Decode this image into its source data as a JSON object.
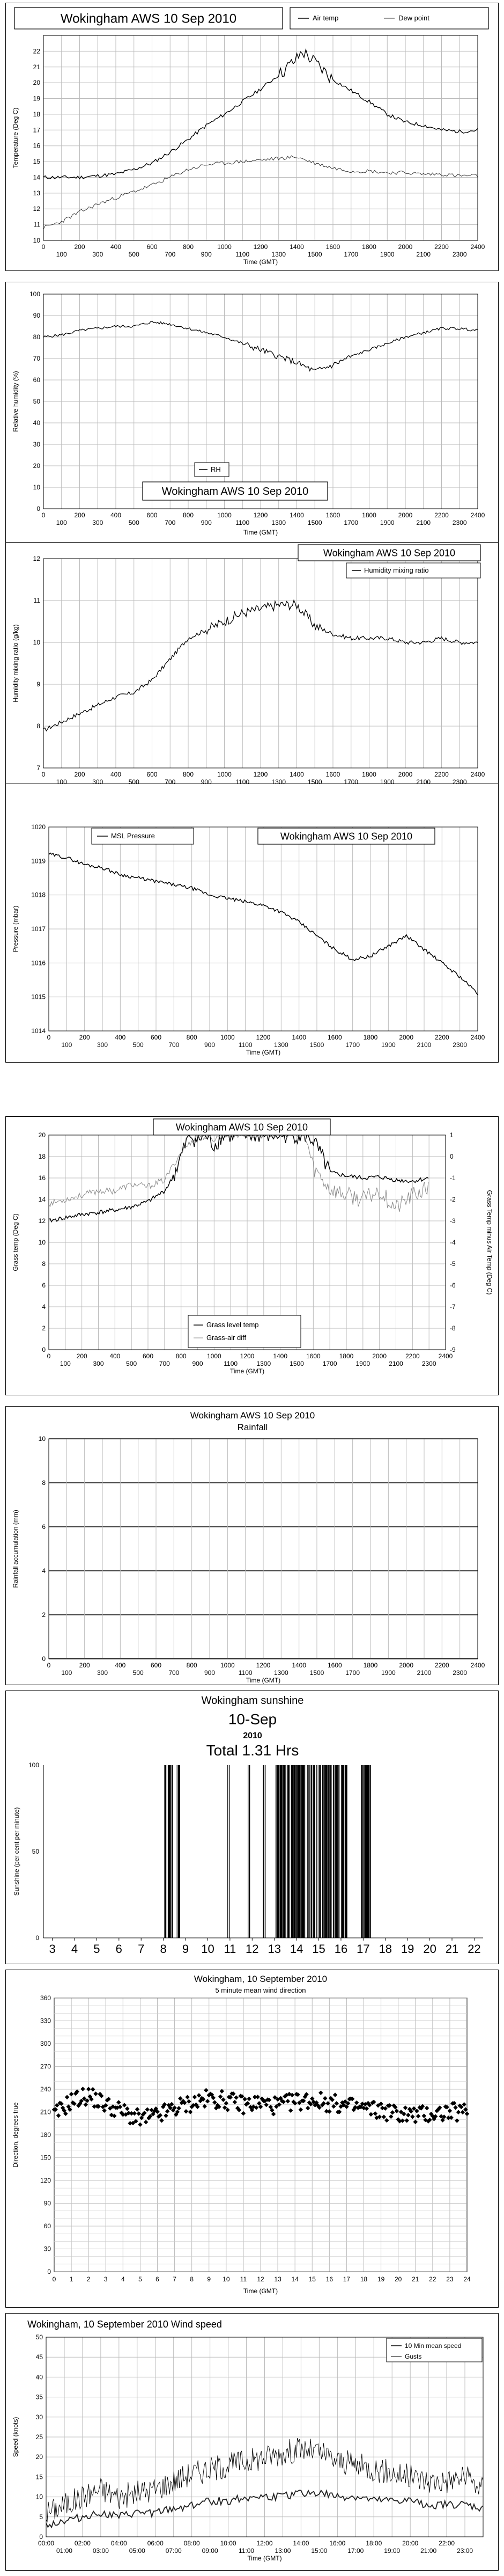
{
  "chart_data": [
    {
      "type": "line",
      "title": "Wokingham AWS 10 Sep 2010",
      "xlabel": "Time (GMT)",
      "ylabel": "Temperature (Deg C)",
      "ylim": [
        10,
        23
      ],
      "xlim": [
        0,
        2400
      ],
      "x_ticks_top": [
        "0",
        "200",
        "400",
        "600",
        "800",
        "1000",
        "1200",
        "1400",
        "1600",
        "1800",
        "2000",
        "2200",
        "2400"
      ],
      "x_ticks_bottom": [
        "100",
        "300",
        "500",
        "700",
        "900",
        "1100",
        "1300",
        "1500",
        "1700",
        "1900",
        "2100",
        "2300"
      ],
      "y_ticks": [
        "10",
        "11",
        "12",
        "13",
        "14",
        "15",
        "16",
        "17",
        "18",
        "19",
        "20",
        "21",
        "22"
      ],
      "grid": true,
      "legend": "top-right",
      "series": [
        {
          "name": "Air temp",
          "x": [
            0,
            100,
            200,
            300,
            400,
            500,
            600,
            700,
            800,
            900,
            1000,
            1100,
            1200,
            1300,
            1400,
            1430,
            1500,
            1600,
            1700,
            1800,
            1900,
            2000,
            2100,
            2200,
            2300,
            2400
          ],
          "values": [
            14.0,
            14.0,
            14.0,
            14.1,
            14.2,
            14.5,
            14.9,
            15.6,
            16.4,
            17.3,
            18.0,
            18.8,
            19.6,
            20.5,
            21.5,
            22.0,
            21.3,
            20.2,
            19.5,
            18.8,
            18.0,
            17.5,
            17.3,
            17.0,
            16.9,
            17.0
          ]
        },
        {
          "name": "Dew point",
          "x": [
            0,
            100,
            200,
            300,
            400,
            500,
            600,
            700,
            800,
            900,
            1000,
            1100,
            1200,
            1300,
            1400,
            1500,
            1600,
            1700,
            1800,
            1900,
            2000,
            2100,
            2200,
            2300,
            2400
          ],
          "values": [
            10.8,
            11.2,
            11.8,
            12.3,
            12.7,
            13.1,
            13.5,
            14.0,
            14.5,
            14.8,
            14.9,
            15.0,
            15.1,
            15.2,
            15.3,
            14.9,
            14.6,
            14.4,
            14.4,
            14.3,
            14.3,
            14.2,
            14.2,
            14.1,
            14.1
          ]
        }
      ]
    },
    {
      "type": "line",
      "title": "Wokingham AWS 10 Sep 2010",
      "xlabel": "Time (GMT)",
      "ylabel": "Relative humidity (%)",
      "ylim": [
        0,
        100
      ],
      "xlim": [
        0,
        2400
      ],
      "x_ticks": [
        "0",
        "100",
        "200",
        "300",
        "400",
        "500",
        "600",
        "700",
        "800",
        "900",
        "1000",
        "1100",
        "1200",
        "1300",
        "1400",
        "1500",
        "1600",
        "1700",
        "1800",
        "1900",
        "2000",
        "2100",
        "2200",
        "2300",
        "2400"
      ],
      "y_ticks": [
        "0",
        "10",
        "20",
        "30",
        "40",
        "50",
        "60",
        "70",
        "80",
        "90",
        "100"
      ],
      "grid": true,
      "legend": "bottom-left",
      "series": [
        {
          "name": "RH",
          "x": [
            0,
            100,
            200,
            300,
            400,
            500,
            600,
            700,
            800,
            900,
            1000,
            1100,
            1200,
            1300,
            1400,
            1500,
            1600,
            1700,
            1800,
            1900,
            2000,
            2100,
            2200,
            2300,
            2400
          ],
          "values": [
            80,
            81,
            83,
            84,
            85,
            85,
            87,
            86,
            84,
            82,
            80,
            77,
            74,
            71,
            68,
            64,
            67,
            71,
            74,
            77,
            80,
            82,
            84,
            84,
            83
          ]
        }
      ]
    },
    {
      "type": "line",
      "title": "Wokingham AWS 10 Sep 2010",
      "xlabel": "Time (GMT)",
      "ylabel": "Humidity mixing ratio (g/kg)",
      "ylim": [
        7,
        12
      ],
      "xlim": [
        0,
        2400
      ],
      "x_ticks_top": [
        "0",
        "200",
        "400",
        "600",
        "800",
        "1000",
        "1200",
        "1400",
        "1600",
        "1800",
        "2000",
        "2200",
        "2400"
      ],
      "x_ticks_bottom": [
        "100",
        "300",
        "500",
        "700",
        "900",
        "1100",
        "1300",
        "1500",
        "1700",
        "1900",
        "2100",
        "2300"
      ],
      "y_ticks": [
        "7",
        "8",
        "9",
        "10",
        "11",
        "12"
      ],
      "grid": true,
      "legend": "top-right",
      "series": [
        {
          "name": "Humidity mixing ratio",
          "x": [
            0,
            100,
            200,
            300,
            400,
            500,
            600,
            700,
            800,
            900,
            1000,
            1100,
            1200,
            1300,
            1400,
            1500,
            1600,
            1700,
            1800,
            1900,
            2000,
            2100,
            2200,
            2300,
            2400
          ],
          "values": [
            7.9,
            8.1,
            8.3,
            8.5,
            8.7,
            8.8,
            9.1,
            9.6,
            10.1,
            10.3,
            10.5,
            10.7,
            10.8,
            10.9,
            10.9,
            10.4,
            10.2,
            10.1,
            10.1,
            10.1,
            10.0,
            10.0,
            10.1,
            10.0,
            10.0
          ]
        }
      ]
    },
    {
      "type": "line",
      "title": "Wokingham AWS 10 Sep 2010",
      "xlabel": "Time (GMT)",
      "ylabel": "Pressure (mbar)",
      "ylim": [
        1014,
        1020
      ],
      "xlim": [
        0,
        2400
      ],
      "x_ticks_top": [
        "0",
        "200",
        "400",
        "600",
        "800",
        "1000",
        "1200",
        "1400",
        "1600",
        "1800",
        "2000",
        "2200",
        "2400"
      ],
      "x_ticks_bottom": [
        "100",
        "300",
        "500",
        "700",
        "900",
        "1100",
        "1300",
        "1500",
        "1700",
        "1900",
        "2100",
        "2300"
      ],
      "y_ticks": [
        "1014",
        "1015",
        "1016",
        "1017",
        "1018",
        "1019",
        "1020"
      ],
      "grid": true,
      "legend": "top-left",
      "series": [
        {
          "name": "MSL Pressure",
          "x": [
            0,
            100,
            200,
            300,
            400,
            500,
            600,
            700,
            800,
            900,
            1000,
            1100,
            1200,
            1300,
            1400,
            1500,
            1600,
            1700,
            1800,
            1900,
            2000,
            2100,
            2200,
            2300,
            2400
          ],
          "values": [
            1019.2,
            1019.1,
            1018.9,
            1018.8,
            1018.6,
            1018.5,
            1018.4,
            1018.3,
            1018.2,
            1018.0,
            1017.9,
            1017.8,
            1017.7,
            1017.5,
            1017.2,
            1016.8,
            1016.4,
            1016.1,
            1016.2,
            1016.5,
            1016.8,
            1016.4,
            1016.0,
            1015.6,
            1015.1
          ]
        }
      ]
    },
    {
      "type": "line",
      "title": "Wokingham AWS 10 Sep 2010",
      "xlabel": "Time (GMT)",
      "ylabel": "Grass temp (Deg C)",
      "y2label": "Grass Temp minus Air Temp (Deg C)",
      "ylim": [
        0,
        20
      ],
      "y2lim": [
        -9,
        1
      ],
      "xlim": [
        0,
        2400
      ],
      "x_ticks_top": [
        "0",
        "200",
        "400",
        "600",
        "800",
        "1000",
        "1200",
        "1400",
        "1600",
        "1800",
        "2000",
        "2200",
        "2400"
      ],
      "x_ticks_bottom": [
        "100",
        "300",
        "500",
        "700",
        "900",
        "1100",
        "1300",
        "1500",
        "1700",
        "1900",
        "2100",
        "2300"
      ],
      "y_ticks": [
        "0",
        "2",
        "4",
        "6",
        "8",
        "10",
        "12",
        "14",
        "16",
        "18",
        "20"
      ],
      "y2_ticks": [
        "-9",
        "-8",
        "-7",
        "-6",
        "-5",
        "-4",
        "-3",
        "-2",
        "-1",
        "0",
        "1"
      ],
      "grid": true,
      "legend": "bottom-center",
      "series": [
        {
          "name": "Grass level temp",
          "x": [
            0,
            100,
            200,
            300,
            400,
            500,
            600,
            700,
            750,
            800,
            850,
            900,
            950,
            1000,
            1050,
            1550,
            1600,
            1650,
            1700,
            1800,
            1900,
            2000,
            2100,
            2200,
            2300
          ],
          "values": [
            12.0,
            12.3,
            12.6,
            12.8,
            13.0,
            13.3,
            13.8,
            14.8,
            16.0,
            18.0,
            20.0,
            19.5,
            20.0,
            19.0,
            20.0,
            20.0,
            19.5,
            18.0,
            16.5,
            16.2,
            16.0,
            16.1,
            15.8,
            15.7,
            16.0
          ]
        },
        {
          "name": "Grass-air diff",
          "x": [
            0,
            100,
            200,
            300,
            400,
            500,
            600,
            700,
            800,
            900,
            1000,
            1050,
            1550,
            1600,
            1700,
            1800,
            1900,
            2000,
            2100,
            2200,
            2300
          ],
          "values2": [
            -2.2,
            -2.0,
            -1.8,
            -1.6,
            -1.6,
            -1.3,
            -1.4,
            -1.1,
            0.2,
            1.0,
            0.8,
            1.0,
            1.0,
            -0.5,
            -1.5,
            -1.8,
            -2.0,
            -1.6,
            -2.4,
            -1.8,
            -1.5
          ]
        }
      ]
    },
    {
      "type": "line",
      "title": "Wokingham AWS 10 Sep 2010",
      "subtitle": "Rainfall",
      "xlabel": "Time (GMT)",
      "ylabel": "Rainfall accumulation (mm)",
      "ylim": [
        0,
        10
      ],
      "xlim": [
        0,
        2400
      ],
      "x_ticks_top": [
        "0",
        "200",
        "400",
        "600",
        "800",
        "1000",
        "1200",
        "1400",
        "1600",
        "1800",
        "2000",
        "2200",
        "2400"
      ],
      "x_ticks_bottom": [
        "100",
        "300",
        "500",
        "700",
        "900",
        "1100",
        "1300",
        "1500",
        "1700",
        "1900",
        "2100",
        "2300"
      ],
      "y_ticks": [
        "0",
        "2",
        "4",
        "6",
        "8",
        "10"
      ],
      "grid": true,
      "series": [
        {
          "x": [
            0,
            2400
          ],
          "values": [
            0,
            0
          ]
        }
      ]
    },
    {
      "type": "bar",
      "title": "Wokingham sunshine",
      "date": "10-Sep",
      "year": "2010",
      "total": "Total 1.31 Hrs",
      "ylabel": "Sunshine (per cent per minute)",
      "ylim": [
        0,
        100
      ],
      "y_ticks": [
        "0",
        "50",
        "100"
      ],
      "x_ticks": [
        "3",
        "4",
        "5",
        "6",
        "7",
        "8",
        "9",
        "10",
        "11",
        "12",
        "13",
        "14",
        "15",
        "16",
        "17",
        "18",
        "19",
        "20",
        "21",
        "22"
      ],
      "xlim": [
        2.6,
        22.4
      ],
      "bursts": [
        [
          8.02,
          8.45
        ],
        [
          8.6,
          8.75
        ],
        [
          10.9,
          11.0
        ],
        [
          11.8,
          11.9
        ],
        [
          12.5,
          12.6
        ],
        [
          13.05,
          13.55
        ],
        [
          13.6,
          14.4
        ],
        [
          14.45,
          15.1
        ],
        [
          15.15,
          15.6
        ],
        [
          15.65,
          15.95
        ],
        [
          16.0,
          16.3
        ],
        [
          16.9,
          17.35
        ]
      ]
    },
    {
      "type": "scatter",
      "title": "Wokingham, 10 September 2010",
      "subtitle": "5 minute mean wind direction",
      "xlabel": "Time (GMT)",
      "ylabel": "Direction, degrees true",
      "ylim": [
        0,
        360
      ],
      "xlim": [
        0,
        24
      ],
      "x_ticks": [
        "0",
        "1",
        "2",
        "3",
        "4",
        "5",
        "6",
        "7",
        "8",
        "9",
        "10",
        "11",
        "12",
        "13",
        "14",
        "15",
        "16",
        "17",
        "18",
        "19",
        "20",
        "21",
        "22",
        "23",
        "24"
      ],
      "y_ticks": [
        "0",
        "30",
        "60",
        "90",
        "120",
        "150",
        "180",
        "210",
        "240",
        "270",
        "300",
        "330",
        "360"
      ],
      "grid": true,
      "series": [
        {
          "name": "Wind direction",
          "x": [
            0,
            1,
            2,
            3,
            4,
            5,
            6,
            7,
            8,
            9,
            10,
            11,
            12,
            13,
            14,
            15,
            16,
            17,
            18,
            19,
            20,
            21,
            22,
            23
          ],
          "values": [
            205,
            225,
            232,
            220,
            210,
            200,
            205,
            215,
            222,
            228,
            225,
            220,
            222,
            218,
            224,
            226,
            222,
            218,
            215,
            212,
            208,
            206,
            208,
            210
          ]
        }
      ]
    },
    {
      "type": "line",
      "title": "Wokingham,  10 September 2010   Wind speed",
      "xlabel": "Time (GMT)",
      "ylabel": "Speed (knots)",
      "ylim": [
        0,
        50
      ],
      "xlim": [
        0,
        24
      ],
      "x_ticks_top": [
        "00:00",
        "02:00",
        "04:00",
        "06:00",
        "08:00",
        "10:00",
        "12:00",
        "14:00",
        "16:00",
        "18:00",
        "20:00",
        "22:00"
      ],
      "x_ticks_bottom": [
        "01:00",
        "03:00",
        "05:00",
        "07:00",
        "09:00",
        "11:00",
        "13:00",
        "15:00",
        "17:00",
        "19:00",
        "21:00",
        "23:00"
      ],
      "y_ticks": [
        "0",
        "5",
        "10",
        "15",
        "20",
        "25",
        "30",
        "35",
        "40",
        "45",
        "50"
      ],
      "grid": true,
      "legend": "top-right",
      "series": [
        {
          "name": "10 Min mean speed",
          "x": [
            0,
            1,
            2,
            3,
            4,
            5,
            6,
            7,
            8,
            9,
            10,
            11,
            12,
            13,
            14,
            15,
            16,
            17,
            18,
            19,
            20,
            21,
            22,
            23,
            24
          ],
          "values": [
            3,
            4,
            5,
            6,
            5,
            6,
            6,
            7,
            8,
            9,
            9,
            10,
            10,
            10,
            11,
            11,
            10,
            10,
            9,
            9,
            9,
            8,
            8,
            8,
            7
          ]
        },
        {
          "name": "Gusts",
          "x": [
            0,
            1,
            2,
            3,
            4,
            5,
            6,
            7,
            8,
            9,
            10,
            11,
            12,
            13,
            14,
            15,
            16,
            17,
            18,
            19,
            20,
            21,
            22,
            23,
            24
          ],
          "values": [
            6,
            8,
            10,
            12,
            10,
            11,
            12,
            14,
            16,
            17,
            18,
            19,
            20,
            21,
            22,
            21,
            19,
            18,
            17,
            16,
            15,
            14,
            14,
            15,
            12
          ]
        }
      ]
    }
  ]
}
